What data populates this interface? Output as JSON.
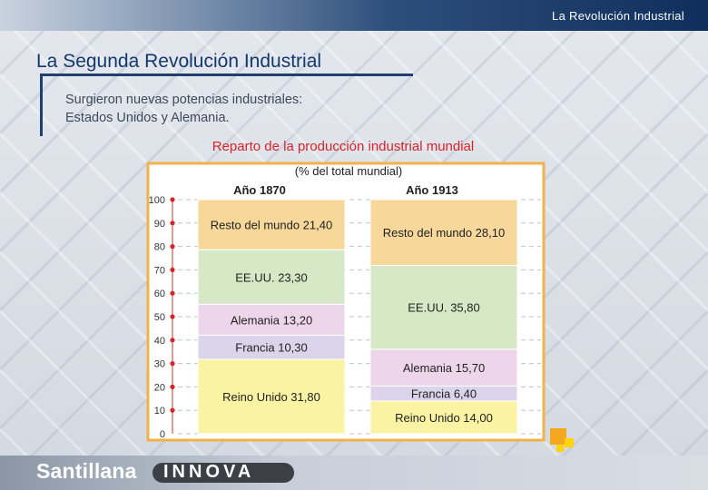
{
  "header": {
    "title": "La Revolución Industrial"
  },
  "slide": {
    "title": "La Segunda Revolución Industrial",
    "intro_line1": "Surgieron nuevas potencias industriales:",
    "intro_line2": "Estados Unidos y Alemania.",
    "chart_heading": "Reparto de la producción industrial mundial"
  },
  "footer": {
    "brand": "Santillana",
    "brand_sub": "INNOVA"
  },
  "colors": {
    "Resto del mundo": "#f7d79a",
    "EE.UU.": "#d6e8c6",
    "Alemania": "#eed6ea",
    "Francia": "#dcd4ea",
    "Reino Unido": "#fbf3a4",
    "frame": "#f2b24a",
    "accent": "#d8232a"
  },
  "chart_data": {
    "type": "bar",
    "stacked": true,
    "unit_label": "(% del total mundial)",
    "categories": [
      "Año 1870",
      "Año 1913"
    ],
    "series": [
      {
        "name": "Reino Unido",
        "values": [
          31.8,
          14.0
        ],
        "labels": [
          "Reino Unido 31,80",
          "Reino Unido 14,00"
        ]
      },
      {
        "name": "Francia",
        "values": [
          10.3,
          6.4
        ],
        "labels": [
          "Francia 10,30",
          "Francia 6,40"
        ]
      },
      {
        "name": "Alemania",
        "values": [
          13.2,
          15.7
        ],
        "labels": [
          "Alemania 13,20",
          "Alemania 15,70"
        ]
      },
      {
        "name": "EE.UU.",
        "values": [
          23.3,
          35.8
        ],
        "labels": [
          "EE.UU. 23,30",
          "EE.UU. 35,80"
        ]
      },
      {
        "name": "Resto del mundo",
        "values": [
          21.4,
          28.1
        ],
        "labels": [
          "Resto del mundo 21,40",
          "Resto del mundo 28,10"
        ]
      }
    ],
    "yticks": [
      "0",
      "10",
      "20",
      "30",
      "40",
      "50",
      "60",
      "70",
      "80",
      "90",
      "100"
    ],
    "ylim": [
      0,
      100
    ],
    "grid": true,
    "legend": "none"
  }
}
